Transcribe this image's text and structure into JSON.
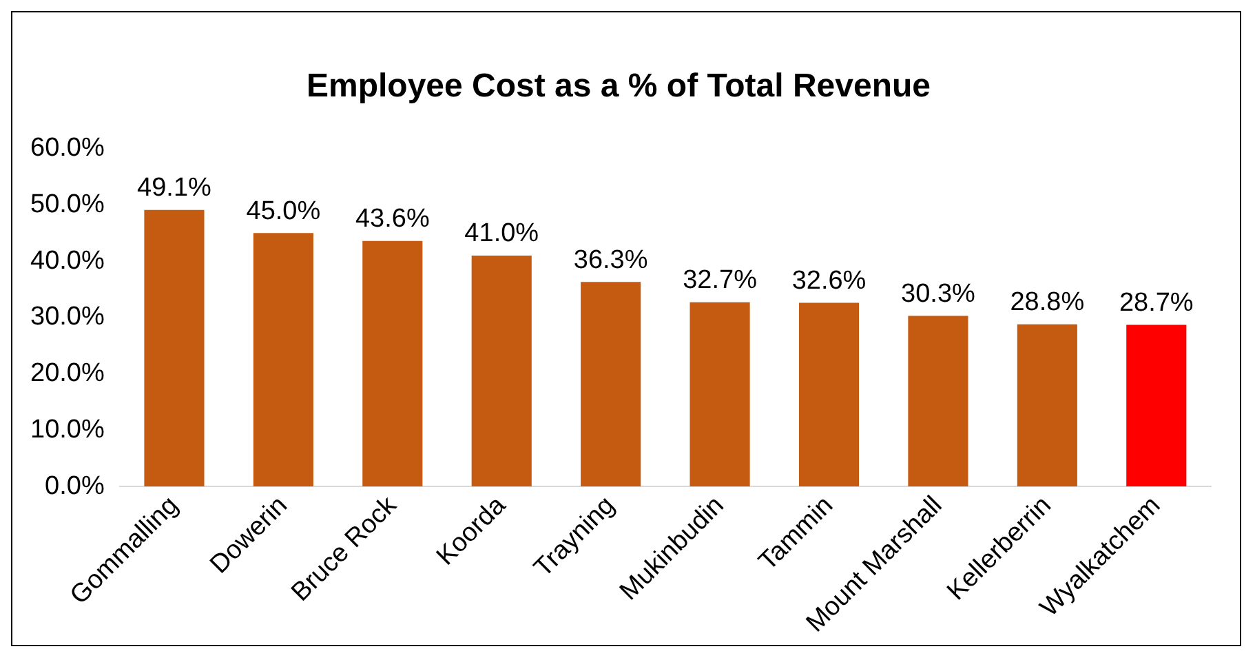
{
  "chart_data": {
    "type": "bar",
    "title": "Employee Cost as a % of Total Revenue",
    "categories": [
      "Gommalling",
      "Dowerin",
      "Bruce Rock",
      "Koorda",
      "Trayning",
      "Mukinbudin",
      "Tammin",
      "Mount Marshall",
      "Kellerberrin",
      "Wyalkatchem"
    ],
    "values": [
      49.1,
      45.0,
      43.6,
      41.0,
      36.3,
      32.7,
      32.6,
      30.3,
      28.8,
      28.7
    ],
    "value_labels": [
      "49.1%",
      "45.0%",
      "43.6%",
      "41.0%",
      "36.3%",
      "32.7%",
      "32.6%",
      "30.3%",
      "28.8%",
      "28.7%"
    ],
    "colors": [
      "#c55a11",
      "#c55a11",
      "#c55a11",
      "#c55a11",
      "#c55a11",
      "#c55a11",
      "#c55a11",
      "#c55a11",
      "#c55a11",
      "#ff0000"
    ],
    "ylim": [
      0,
      60
    ],
    "yticks": [
      {
        "value": 0,
        "label": "0.0%"
      },
      {
        "value": 10,
        "label": "10.0%"
      },
      {
        "value": 20,
        "label": "20.0%"
      },
      {
        "value": 30,
        "label": "30.0%"
      },
      {
        "value": 40,
        "label": "40.0%"
      },
      {
        "value": 50,
        "label": "50.0%"
      },
      {
        "value": 60,
        "label": "60.0%"
      }
    ],
    "grid": false,
    "legend": false
  }
}
